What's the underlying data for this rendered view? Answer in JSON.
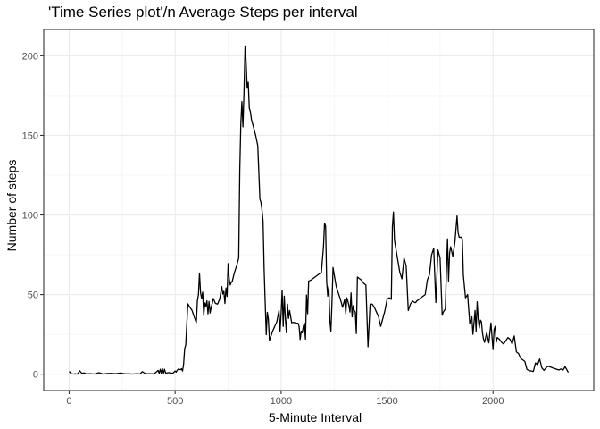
{
  "title": "'Time Series plot'/n Average Steps per interval",
  "chart_data": {
    "type": "line",
    "title": "'Time Series plot'/n Average Steps per interval",
    "xlabel": "5-Minute Interval",
    "ylabel": "Number of steps",
    "xlim": [
      -120,
      2475
    ],
    "ylim": [
      -10.3,
      216.5
    ],
    "xticks": [
      0,
      500,
      1000,
      1500,
      2000
    ],
    "yticks": [
      0,
      50,
      100,
      150,
      200
    ],
    "xtick_labels": [
      "0",
      "500",
      "1000",
      "1500",
      "2000"
    ],
    "ytick_labels": [
      "0",
      "50",
      "100",
      "150",
      "200"
    ],
    "grid": true,
    "theme": "bw",
    "line_color": "#000000",
    "series": [
      {
        "x": [
          0,
          10,
          20,
          30,
          40,
          50,
          60,
          70,
          80,
          100,
          120,
          140,
          160,
          180,
          200,
          220,
          240,
          260,
          280,
          300,
          320,
          335,
          345,
          360,
          380,
          400,
          410,
          420,
          425,
          430,
          435,
          440,
          445,
          450,
          455,
          460,
          470,
          480,
          490,
          500,
          505,
          510,
          515,
          520,
          525,
          530,
          535,
          540,
          545,
          550,
          560,
          570,
          580,
          590,
          600,
          605,
          610,
          615,
          620,
          625,
          630,
          635,
          640,
          645,
          650,
          655,
          660,
          665,
          670,
          675,
          680,
          690,
          700,
          710,
          720,
          725,
          730,
          735,
          740,
          745,
          750,
          755,
          760,
          765,
          770,
          780,
          790,
          800,
          805,
          810,
          815,
          820,
          825,
          830,
          835,
          840,
          845,
          850,
          855,
          860,
          870,
          880,
          890,
          900,
          905,
          910,
          915,
          920,
          925,
          930,
          935,
          940,
          945,
          950,
          955,
          960,
          970,
          980,
          990,
          995,
          1000,
          1005,
          1010,
          1015,
          1020,
          1025,
          1030,
          1035,
          1040,
          1050,
          1060,
          1070,
          1080,
          1085,
          1090,
          1095,
          1100,
          1105,
          1110,
          1115,
          1120,
          1125,
          1130,
          1140,
          1150,
          1160,
          1170,
          1180,
          1190,
          1200,
          1205,
          1210,
          1215,
          1220,
          1225,
          1230,
          1235,
          1240,
          1245,
          1250,
          1255,
          1260,
          1270,
          1280,
          1290,
          1300,
          1305,
          1310,
          1315,
          1320,
          1325,
          1330,
          1335,
          1340,
          1345,
          1350,
          1355,
          1360,
          1370,
          1380,
          1390,
          1400,
          1410,
          1420,
          1430,
          1440,
          1450,
          1460,
          1470,
          1480,
          1490,
          1500,
          1510,
          1520,
          1525,
          1530,
          1535,
          1540,
          1545,
          1550,
          1555,
          1560,
          1570,
          1580,
          1590,
          1600,
          1610,
          1620,
          1630,
          1635,
          1640,
          1650,
          1660,
          1670,
          1680,
          1690,
          1700,
          1710,
          1720,
          1730,
          1740,
          1750,
          1760,
          1765,
          1770,
          1775,
          1780,
          1785,
          1790,
          1795,
          1800,
          1810,
          1820,
          1830,
          1835,
          1840,
          1845,
          1850,
          1855,
          1860,
          1870,
          1880,
          1890,
          1900,
          1905,
          1910,
          1915,
          1920,
          1925,
          1930,
          1935,
          1940,
          1945,
          1950,
          1955,
          1960,
          1970,
          1980,
          1990,
          2000,
          2005,
          2010,
          2015,
          2020,
          2030,
          2040,
          2050,
          2060,
          2070,
          2080,
          2090,
          2100,
          2110,
          2120,
          2130,
          2140,
          2150,
          2160,
          2170,
          2180,
          2190,
          2200,
          2210,
          2220,
          2230,
          2240,
          2250,
          2260,
          2270,
          2280,
          2290,
          2300,
          2310,
          2320,
          2330,
          2340,
          2355
        ],
        "values": [
          1.7,
          0.3,
          0.1,
          0.2,
          0.1,
          2.1,
          0.5,
          0.8,
          0.2,
          0.3,
          0.1,
          0.9,
          0.1,
          0.4,
          0.5,
          0.3,
          0.7,
          0.3,
          0.2,
          0.1,
          0.3,
          0.1,
          1.6,
          0.3,
          0.3,
          0.2,
          1.2,
          2.4,
          0.5,
          3.1,
          0.6,
          3.5,
          0.5,
          3.1,
          0.8,
          0.7,
          1.0,
          0.6,
          0.6,
          2.0,
          1.3,
          2.5,
          3.2,
          3.0,
          2.8,
          3.4,
          2.0,
          6.3,
          16.0,
          18.3,
          44.2,
          42.0,
          40.0,
          36.0,
          32.4,
          46.0,
          49.9,
          63.5,
          51.2,
          47.6,
          51.5,
          36.9,
          44.8,
          42.6,
          46.1,
          37.9,
          45.7,
          38.4,
          42.0,
          44.4,
          47.6,
          44.5,
          44.0,
          47.0,
          55.0,
          50.3,
          52.0,
          44.4,
          54.2,
          48.9,
          69.5,
          60.0,
          56.0,
          57.6,
          58.5,
          64.0,
          68.0,
          73.0,
          128.0,
          157.3,
          171.2,
          155.4,
          177.3,
          206.2,
          195.9,
          179.6,
          183.4,
          167.0,
          165.0,
          160.0,
          155.0,
          150.0,
          143.5,
          110.0,
          108.0,
          103.0,
          96.0,
          66.0,
          45.0,
          24.8,
          38.8,
          34.6,
          21.1,
          23.0,
          25.0,
          27.0,
          30.0,
          33.0,
          40.0,
          27.0,
          38.0,
          52.6,
          30.0,
          49.0,
          35.0,
          26.0,
          44.0,
          35.0,
          40.0,
          32.3,
          32.5,
          32.1,
          32.0,
          30.0,
          21.8,
          27.0,
          26.0,
          30.0,
          32.0,
          22.0,
          49.7,
          38.0,
          58.5,
          59.0,
          60.0,
          61.0,
          62.0,
          63.0,
          64.0,
          80.0,
          94.9,
          93.0,
          58.0,
          49.0,
          55.0,
          34.0,
          26.8,
          45.0,
          67.0,
          63.0,
          59.0,
          55.0,
          51.0,
          47.0,
          42.0,
          47.0,
          38.0,
          48.0,
          46.0,
          43.0,
          39.0,
          51.0,
          36.0,
          43.0,
          40.0,
          39.0,
          25.5,
          61.0,
          60.0,
          59.0,
          57.0,
          56.0,
          17.2,
          44.0,
          44.0,
          42.0,
          39.0,
          36.0,
          30.0,
          35.0,
          40.0,
          47.0,
          48.0,
          47.0,
          92.5,
          101.9,
          84.0,
          80.0,
          76.0,
          72.0,
          68.0,
          64.0,
          59.9,
          73.0,
          68.0,
          40.0,
          44.0,
          46.0,
          45.0,
          45.0,
          46.0,
          47.0,
          48.0,
          49.0,
          50.0,
          59.2,
          62.5,
          74.9,
          79.0,
          45.0,
          78.0,
          73.0,
          37.0,
          39.0,
          40.0,
          41.0,
          65.0,
          85.0,
          58.5,
          76.0,
          80.0,
          74.0,
          83.0,
          99.4,
          89.0,
          86.0,
          86.0,
          86.0,
          85.0,
          62.0,
          48.0,
          50.0,
          32.0,
          36.0,
          25.0,
          32.0,
          40.0,
          27.0,
          45.5,
          35.0,
          29.0,
          34.0,
          33.0,
          26.0,
          22.0,
          20.0,
          26.0,
          19.7,
          32.2,
          15.5,
          28.0,
          30.0,
          20.0,
          23.0,
          22.0,
          20.0,
          19.0,
          21.0,
          23.0,
          22.0,
          19.0,
          24.0,
          14.0,
          13.0,
          10.0,
          9.0,
          8.0,
          3.0,
          2.3,
          2.0,
          1.7,
          7.0,
          6.0,
          9.5,
          4.0,
          2.4,
          4.0,
          5.0,
          4.5,
          4.0,
          3.5,
          3.1,
          2.6,
          3.3,
          2.6,
          4.7,
          1.1
        ]
      }
    ]
  }
}
